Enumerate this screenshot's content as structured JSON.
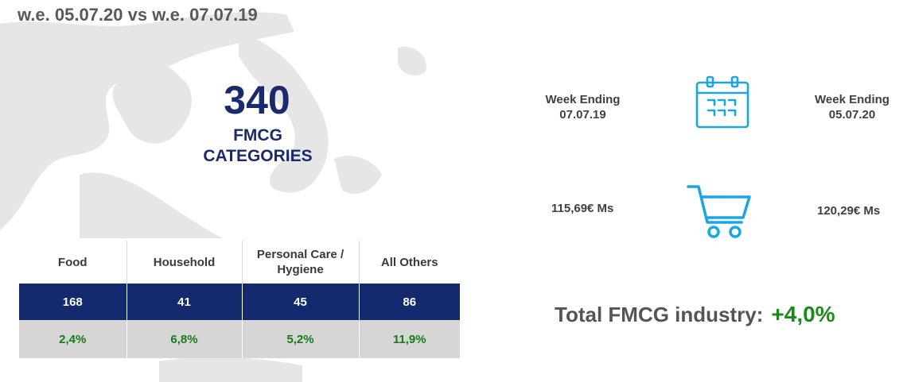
{
  "header": {
    "title": "w.e. 05.07.20 vs w.e. 07.07.19"
  },
  "summary": {
    "count": "340",
    "label_line1": "FMCG",
    "label_line2": "CATEGORIES"
  },
  "table": {
    "headers": [
      "Food",
      "Household",
      "Personal Care / Hygiene",
      "All Others"
    ],
    "counts": [
      "168",
      "41",
      "45",
      "86"
    ],
    "growth": [
      "2,4%",
      "6,8%",
      "5,2%",
      "11,9%"
    ],
    "colors": {
      "count_row": "#14296e",
      "growth_row": "#d6d6d6",
      "growth_text": "#1a7a1a"
    }
  },
  "comparison": {
    "left_week": {
      "line1": "Week Ending",
      "line2": "07.07.19"
    },
    "right_week": {
      "line1": "Week Ending",
      "line2": "05.07.20"
    },
    "left_value": "115,69€ Ms",
    "right_value": "120,29€ Ms",
    "icons": [
      "calendar-icon",
      "shopping-cart-icon"
    ],
    "accent": "#1aa6e0"
  },
  "total": {
    "label": "Total FMCG industry:",
    "value": "+4,0%"
  }
}
